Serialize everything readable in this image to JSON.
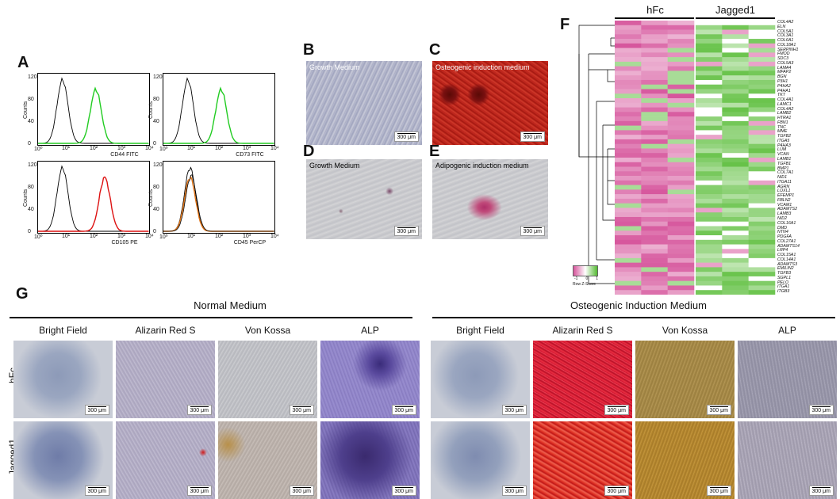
{
  "panel_labels": {
    "a": "A",
    "b": "B",
    "c": "C",
    "d": "D",
    "e": "E",
    "f": "F",
    "g": "G"
  },
  "flow": {
    "counts_label": "Counts",
    "y_ticks": [
      "0",
      "40",
      "80",
      "120"
    ],
    "x_ticks": [
      "10⁰",
      "10¹",
      "10²",
      "10³",
      "10⁴"
    ],
    "markers": [
      {
        "label": "CD44 FITC",
        "color": "#22cc22"
      },
      {
        "label": "CD73 FITC",
        "color": "#22cc22"
      },
      {
        "label": "CD105 PE",
        "color": "#dd1111"
      },
      {
        "label": "CD45 PerCP",
        "color": "#e07010"
      }
    ]
  },
  "micro_top": {
    "b": {
      "text": "Growth Medium",
      "scale": "300 μm"
    },
    "c": {
      "text": "Osteogenic induction medium",
      "scale": "300 μm"
    },
    "d": {
      "text": "Growth Medium",
      "scale": "300 μm"
    },
    "e": {
      "text": "Adipogenic induction medium",
      "scale": "300 μm"
    }
  },
  "heatmap": {
    "group1": "hFc",
    "group2": "Jagged1",
    "legend_title": "Row Z-Score",
    "legend_ticks": [
      "-1",
      "0",
      "1"
    ],
    "genes": [
      "COL4A2",
      "ELN",
      "COL5A1",
      "COL3A1",
      "COL6A1",
      "COL18A1",
      "SERPINH1",
      "FMOD",
      "SDC3",
      "COL5A3",
      "LAMA4",
      "MFAP2",
      "BGN",
      "P3H1",
      "P4HA2",
      "P4HA1",
      "TKT",
      "COL4A1",
      "LAMC1",
      "COL4A2",
      "LAMB2",
      "HTRA1",
      "FBN1",
      "TNC",
      "MME",
      "TGFB2",
      "ITGA5",
      "P4HA3",
      "LUM",
      "VCAN",
      "LAMB1",
      "TGFB1",
      "BMP1",
      "COL7A1",
      "NID1",
      "ITGA11",
      "AGRN",
      "LOXL1",
      "EFEMP1",
      "FBLN2",
      "VCAM1",
      "ADAMTS2",
      "LAMB3",
      "NID2",
      "COL16A1",
      "DMD",
      "NTN4",
      "PDGFA",
      "COL27A1",
      "ADAMTS14",
      "LRP4",
      "COL15A1",
      "COL14A1",
      "ADAMTS3",
      "EMILIN2",
      "TGFB3",
      "SGPL1",
      "PELO",
      "ITGA1",
      "ITGB3"
    ]
  },
  "panel_g": {
    "normal_title": "Normal Medium",
    "osteo_title": "Osteogenic Induction Medium",
    "columns": [
      "Bright Field",
      "Alizarin Red S",
      "Von Kossa",
      "ALP"
    ],
    "rows": [
      "hFc",
      "Jagged1"
    ],
    "scale": "300 μm"
  },
  "colors": {
    "green_hist": "#22cc22",
    "red_hist": "#dd1111",
    "orange_hist": "#e07010",
    "heat_pink": "#d6559c",
    "heat_green": "#55bb33"
  }
}
